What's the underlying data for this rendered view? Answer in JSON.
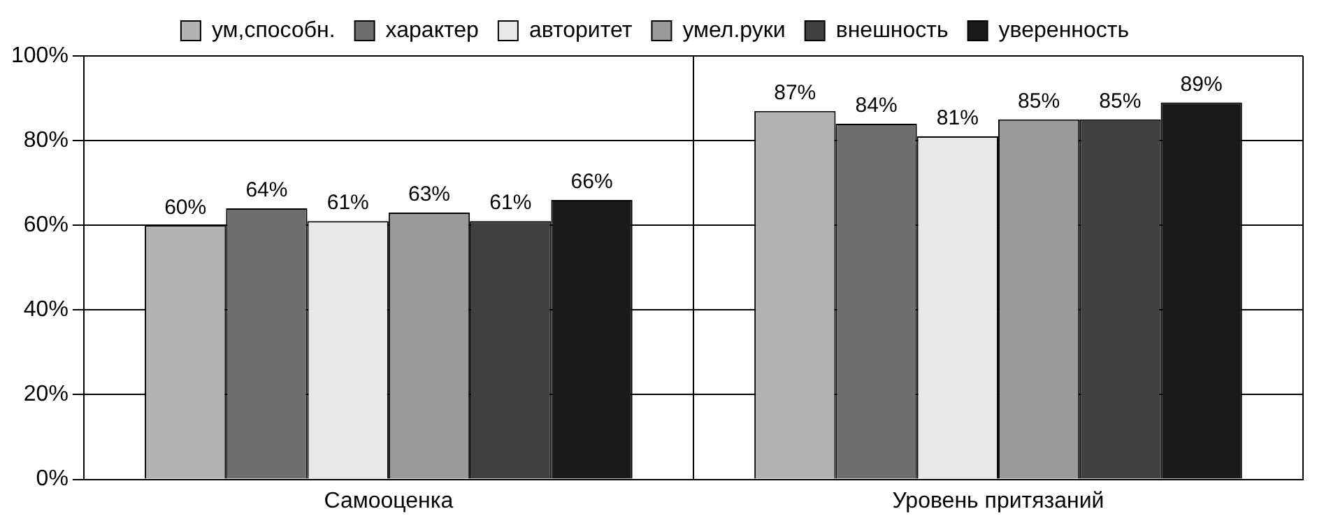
{
  "chart_data": {
    "type": "bar",
    "categories": [
      "Самооценка",
      "Уровень притязаний"
    ],
    "series": [
      {
        "name": "ум,способн.",
        "color": "#b3b3b3",
        "values": [
          60,
          87
        ]
      },
      {
        "name": "характер",
        "color": "#6e6e6e",
        "values": [
          64,
          84
        ]
      },
      {
        "name": "авторитет",
        "color": "#e8e8e8",
        "values": [
          61,
          81
        ]
      },
      {
        "name": "умел.руки",
        "color": "#9a9a9a",
        "values": [
          63,
          85
        ]
      },
      {
        "name": "внешность",
        "color": "#404040",
        "values": [
          61,
          85
        ]
      },
      {
        "name": "уверенность",
        "color": "#1a1a1a",
        "values": [
          66,
          89
        ]
      }
    ],
    "ylim": [
      0,
      100
    ],
    "yticks": [
      {
        "value": 0,
        "label": "0%"
      },
      {
        "value": 20,
        "label": "20%"
      },
      {
        "value": 40,
        "label": "40%"
      },
      {
        "value": 60,
        "label": "60%"
      },
      {
        "value": 80,
        "label": "80%"
      },
      {
        "value": 100,
        "label": "100%"
      }
    ],
    "value_labels": [
      [
        "60%",
        "87%"
      ],
      [
        "64%",
        "84%"
      ],
      [
        "61%",
        "81%"
      ],
      [
        "63%",
        "85%"
      ],
      [
        "61%",
        "85%"
      ],
      [
        "66%",
        "89%"
      ]
    ],
    "grid": true,
    "legend": "top"
  }
}
